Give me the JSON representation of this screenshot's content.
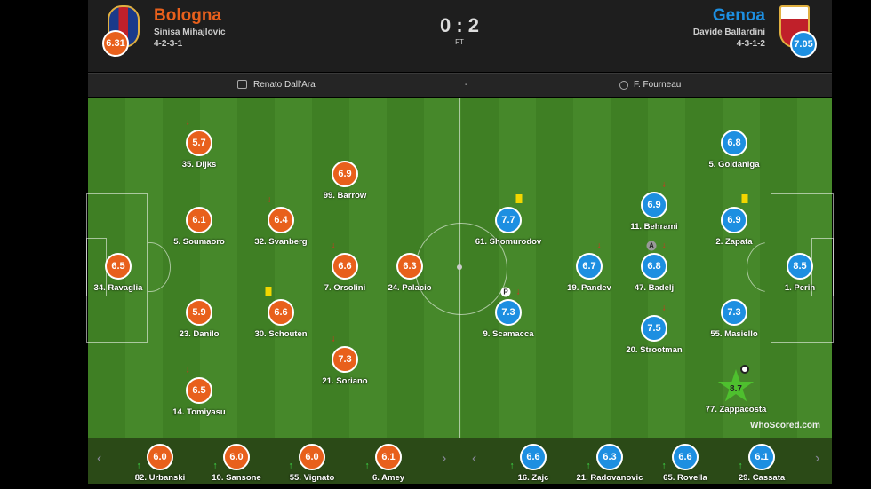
{
  "home": {
    "name": "Bologna",
    "manager": "Sinisa Mihajlovic",
    "formation": "4-2-3-1",
    "rating": "6.31",
    "color": "#e8601c"
  },
  "away": {
    "name": "Genoa",
    "manager": "Davide Ballardini",
    "formation": "4-3-1-2",
    "rating": "7.05",
    "color": "#1d8fe1"
  },
  "score": "0 : 2",
  "status": "FT",
  "venue": "Renato Dall'Ara",
  "separator": "-",
  "referee": "F. Fourneau",
  "players": [
    {
      "team": "home",
      "label": "34. Ravaglia",
      "rating": "6.5"
    },
    {
      "team": "home",
      "label": "35. Dijks",
      "rating": "5.7",
      "sub_off": true
    },
    {
      "team": "home",
      "label": "5. Soumaoro",
      "rating": "6.1"
    },
    {
      "team": "home",
      "label": "23. Danilo",
      "rating": "5.9"
    },
    {
      "team": "home",
      "label": "14. Tomiyasu",
      "rating": "6.5",
      "sub_off": true
    },
    {
      "team": "home",
      "label": "32. Svanberg",
      "rating": "6.4",
      "sub_off": true
    },
    {
      "team": "home",
      "label": "30. Schouten",
      "rating": "6.6",
      "yellow_card": true
    },
    {
      "team": "home",
      "label": "99. Barrow",
      "rating": "6.9"
    },
    {
      "team": "home",
      "label": "7. Orsolini",
      "rating": "6.6",
      "sub_off": true
    },
    {
      "team": "home",
      "label": "21. Soriano",
      "rating": "7.3",
      "sub_off": true
    },
    {
      "team": "home",
      "label": "24. Palacio",
      "rating": "6.3"
    },
    {
      "team": "away",
      "label": "5. Goldaniga",
      "rating": "6.8"
    },
    {
      "team": "away",
      "label": "2. Zapata",
      "rating": "6.9",
      "yellow_card": true
    },
    {
      "team": "away",
      "label": "1. Perin",
      "rating": "8.5"
    },
    {
      "team": "away",
      "label": "55. Masiello",
      "rating": "7.3"
    },
    {
      "team": "away",
      "label": "77. Zappacosta",
      "rating": "8.7",
      "man_of_match": true,
      "goal": true
    },
    {
      "team": "away",
      "label": "11. Behrami",
      "rating": "6.9",
      "sub_off": true
    },
    {
      "team": "away",
      "label": "47. Badelj",
      "rating": "6.8",
      "sub_off": true,
      "badge": "A"
    },
    {
      "team": "away",
      "label": "20. Strootman",
      "rating": "7.5",
      "sub_off": true
    },
    {
      "team": "away",
      "label": "19. Pandev",
      "rating": "6.7",
      "sub_off": true
    },
    {
      "team": "away",
      "label": "61. Shomurodov",
      "rating": "7.7",
      "yellow_card": true
    },
    {
      "team": "away",
      "label": "9. Scamacca",
      "rating": "7.3",
      "sub_off": true,
      "badge": "P"
    }
  ],
  "subs": [
    {
      "team": "home",
      "label": "82. Urbanski",
      "rating": "6.0"
    },
    {
      "team": "home",
      "label": "10. Sansone",
      "rating": "6.0"
    },
    {
      "team": "home",
      "label": "55. Vignato",
      "rating": "6.0"
    },
    {
      "team": "home",
      "label": "6. Amey",
      "rating": "6.1"
    },
    {
      "team": "away",
      "label": "16. Zajc",
      "rating": "6.6"
    },
    {
      "team": "away",
      "label": "21. Radovanovic",
      "rating": "6.3"
    },
    {
      "team": "away",
      "label": "65. Rovella",
      "rating": "6.6"
    },
    {
      "team": "away",
      "label": "29. Cassata",
      "rating": "6.1"
    }
  ],
  "watermark": "WhoScored.com"
}
